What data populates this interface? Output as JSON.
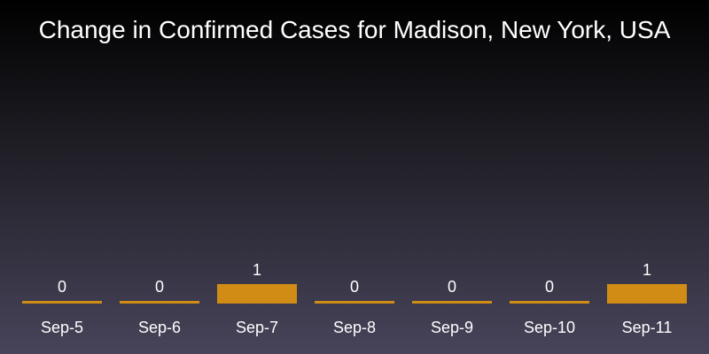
{
  "chart_data": {
    "type": "bar",
    "title": "Change in Confirmed Cases for Madison, New York, USA",
    "categories": [
      "Sep-5",
      "Sep-6",
      "Sep-7",
      "Sep-8",
      "Sep-9",
      "Sep-10",
      "Sep-11"
    ],
    "values": [
      0,
      0,
      1,
      0,
      0,
      0,
      1
    ],
    "data_labels": [
      "0",
      "0",
      "1",
      "0",
      "0",
      "0",
      "1"
    ],
    "xlabel": "",
    "ylabel": "",
    "ylim": [
      0,
      1
    ],
    "grid": false,
    "bar_color": "#d08c14",
    "text_color": "#ffffff",
    "background": [
      "#000000",
      "#47445a"
    ]
  }
}
